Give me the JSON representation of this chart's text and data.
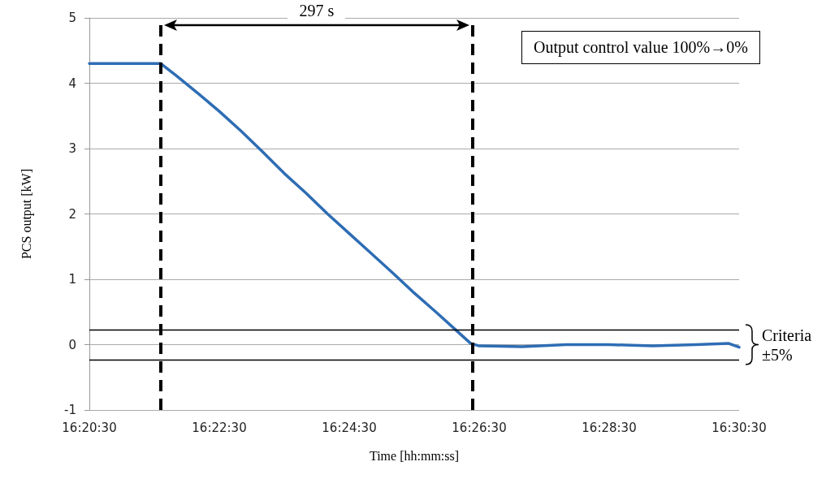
{
  "chart_data": {
    "type": "line",
    "xlabel": "Time [hh:mm:ss]",
    "ylabel": "PCS output [kW]",
    "x": [
      16.341667,
      16.36,
      16.363889,
      16.369444,
      16.375,
      16.380556,
      16.386111,
      16.391667,
      16.397222,
      16.402778,
      16.408333,
      16.413889,
      16.419444,
      16.425,
      16.430556,
      16.436111,
      16.439444,
      16.441667,
      16.452778,
      16.463889,
      16.475,
      16.486111,
      16.497222,
      16.505556,
      16.508333
    ],
    "series": [
      {
        "color": "#2e6db4",
        "values": [
          4.3,
          4.3,
          4.12,
          3.85,
          3.57,
          3.27,
          2.95,
          2.62,
          2.32,
          2.0,
          1.7,
          1.4,
          1.1,
          0.79,
          0.5,
          0.2,
          0.02,
          -0.02,
          -0.03,
          0.0,
          0.0,
          -0.02,
          0.0,
          0.02,
          -0.04
        ]
      }
    ],
    "xlim": [
      16.341667,
      16.508333
    ],
    "xticks": [
      {
        "value": 16.341667,
        "label": "16:20:30"
      },
      {
        "value": 16.375,
        "label": "16:22:30"
      },
      {
        "value": 16.408333,
        "label": "16:24:30"
      },
      {
        "value": 16.441667,
        "label": "16:26:30"
      },
      {
        "value": 16.475,
        "label": "16:28:30"
      },
      {
        "value": 16.508333,
        "label": "16:30:30"
      }
    ],
    "ylim": [
      -1,
      5
    ],
    "yticks": [
      -1,
      0,
      1,
      2,
      3,
      4,
      5
    ],
    "grid": "y",
    "marker": "none",
    "line_style": "solid",
    "ref_lines": [
      {
        "axis": "x",
        "value": 16.36,
        "color": "#000000",
        "line_style": "dashed"
      },
      {
        "axis": "x",
        "value": 16.44,
        "color": "#000000",
        "line_style": "dashed"
      },
      {
        "axis": "y",
        "value": 0.23,
        "color": "#000000",
        "line_style": "solid"
      },
      {
        "axis": "y",
        "value": -0.23,
        "color": "#000000",
        "line_style": "solid"
      }
    ],
    "annotations": [
      "297 s",
      "Output control value 100%→0%",
      "Criteria ±5%"
    ]
  }
}
